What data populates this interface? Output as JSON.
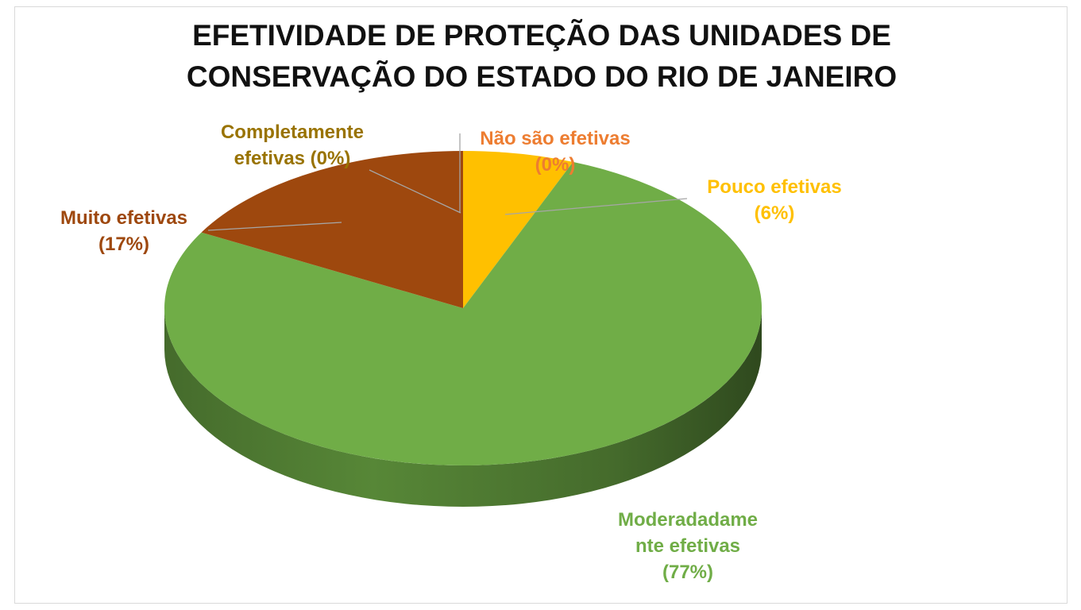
{
  "chart_data": {
    "type": "pie",
    "title_lines": [
      "EFETIVIDADE DE PROTEÇÃO DAS UNIDADES DE",
      "CONSERVAÇÃO DO ESTADO DO RIO DE JANEIRO"
    ],
    "slices": [
      {
        "key": "nao",
        "label_lines": [
          "Não são efetivas",
          "(0%)"
        ],
        "value": 0,
        "color": "#ED7D31"
      },
      {
        "key": "pouco",
        "label_lines": [
          "Pouco efetivas",
          "(6%)"
        ],
        "value": 6,
        "color": "#FFC000"
      },
      {
        "key": "moderada",
        "label_lines": [
          "Moderadadame",
          "nte efetivas",
          "(77%)"
        ],
        "value": 77,
        "color": "#70AD47"
      },
      {
        "key": "muito",
        "label_lines": [
          "Muito efetivas",
          "(17%)"
        ],
        "value": 17,
        "color": "#9E480E"
      },
      {
        "key": "completa",
        "label_lines": [
          "Completamente",
          "efetivas (0%)"
        ],
        "value": 0,
        "color": "#997300"
      }
    ],
    "style": "3d-pie"
  }
}
